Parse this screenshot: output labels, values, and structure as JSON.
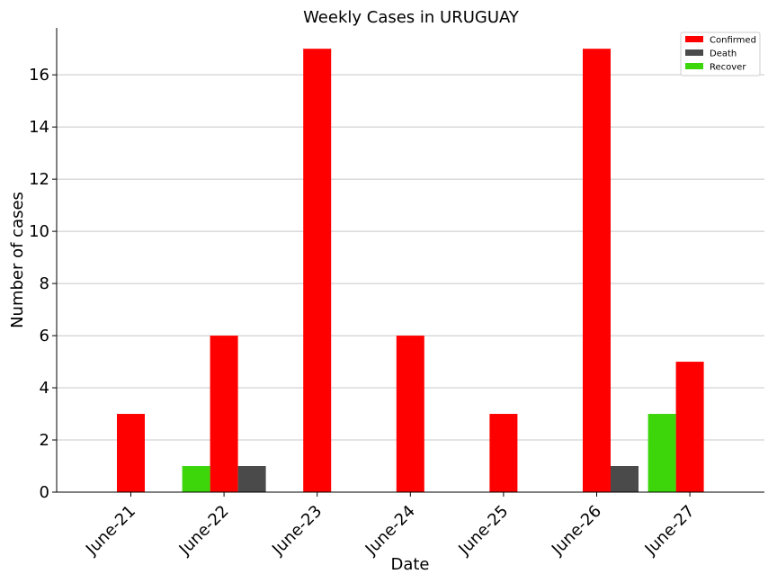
{
  "chart_data": {
    "type": "bar",
    "title": "Weekly Cases in URUGUAY",
    "xlabel": "Date",
    "ylabel": "Number of cases",
    "categories": [
      "June-21",
      "June-22",
      "June-23",
      "June-24",
      "June-25",
      "June-26",
      "June-27"
    ],
    "series": [
      {
        "name": "Confirmed",
        "color": "#ff0000",
        "values": [
          3,
          6,
          17,
          6,
          3,
          17,
          5
        ]
      },
      {
        "name": "Death",
        "color": "#4a4a4a",
        "values": [
          0,
          1,
          0,
          0,
          0,
          1,
          0
        ]
      },
      {
        "name": "Recover",
        "color": "#3cd60a",
        "values": [
          0,
          1,
          0,
          0,
          0,
          0,
          3
        ]
      }
    ],
    "ylim": [
      0,
      17.8
    ],
    "yticks": [
      0,
      2,
      4,
      6,
      8,
      10,
      12,
      14,
      16
    ],
    "grid": "horizontal",
    "legend_position": "top-right"
  }
}
